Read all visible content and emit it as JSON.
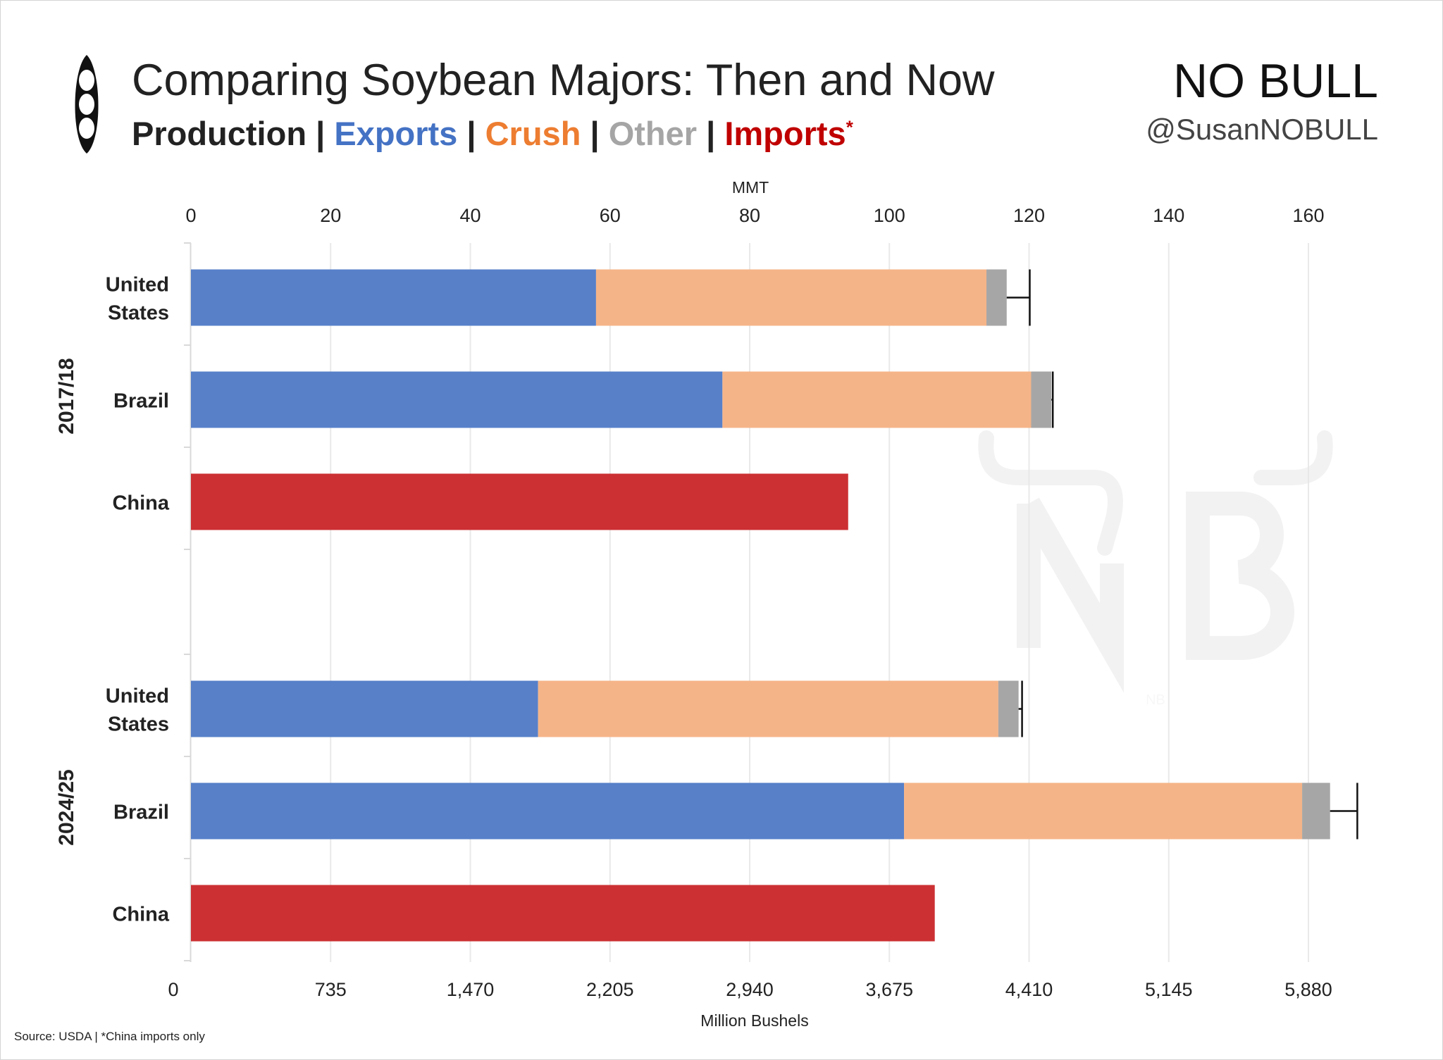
{
  "header": {
    "title": "Comparing Soybean Majors: Then and Now",
    "subtitle": {
      "production": "Production",
      "exports": "Exports",
      "crush": "Crush",
      "other": "Other",
      "imports": "Imports",
      "asterisk": "*",
      "separator": "|"
    }
  },
  "logo": {
    "text": "NO BULL",
    "watermark": "NB"
  },
  "handle": "@SusanNOBULL",
  "source": "Source: USDA | *China imports only",
  "colors": {
    "production": "#222222",
    "exports": "#4472c4",
    "crush": "#ed7d31",
    "other": "#a5a5a5",
    "imports": "#c00000",
    "exports_bar": "#5780c9",
    "crush_bar": "#f5b488",
    "other_bar": "#a6a6a6",
    "imports_bar": "#cc3033"
  },
  "chart_data": {
    "type": "bar",
    "orientation": "horizontal",
    "stacked": true,
    "title": "Comparing Soybean Majors: Then and Now",
    "top_axis": {
      "label": "MMT",
      "range": [
        0,
        160
      ],
      "ticks": [
        "0",
        "20",
        "40",
        "60",
        "80",
        "100",
        "120",
        "140",
        "160"
      ]
    },
    "bottom_axis": {
      "label": "Million Bushels",
      "range": [
        0,
        5880
      ],
      "ticks": [
        "0",
        "735",
        "1,470",
        "2,205",
        "2,940",
        "3,675",
        "4,410",
        "5,145",
        "5,880"
      ]
    },
    "groups": [
      {
        "label": "2017/18",
        "rows": [
          {
            "country": "United States",
            "label_lines": [
              "United",
              "States"
            ],
            "exports": 58.0,
            "crush": 55.9,
            "other": 2.9,
            "imports": 0,
            "production": 120.1
          },
          {
            "country": "Brazil",
            "label_lines": [
              "Brazil"
            ],
            "exports": 76.1,
            "crush": 44.2,
            "other": 2.9,
            "imports": 0,
            "production": 123.4
          },
          {
            "country": "China",
            "label_lines": [
              "China"
            ],
            "exports": 0,
            "crush": 0,
            "other": 0,
            "imports": 94.1,
            "production": null
          }
        ]
      },
      {
        "label": "2024/25",
        "rows": [
          {
            "country": "United States",
            "label_lines": [
              "United",
              "States"
            ],
            "exports": 49.7,
            "crush": 65.9,
            "other": 2.9,
            "imports": 0,
            "production": 119.0
          },
          {
            "country": "Brazil",
            "label_lines": [
              "Brazil"
            ],
            "exports": 102.1,
            "crush": 57.0,
            "other": 4.0,
            "imports": 0,
            "production": 167.0
          },
          {
            "country": "China",
            "label_lines": [
              "China"
            ],
            "exports": 0,
            "crush": 0,
            "other": 0,
            "imports": 106.5,
            "production": null
          }
        ]
      }
    ],
    "legend": [
      "Production",
      "Exports",
      "Crush",
      "Other",
      "Imports"
    ],
    "legend_placement": "subtitle",
    "grid": true
  }
}
